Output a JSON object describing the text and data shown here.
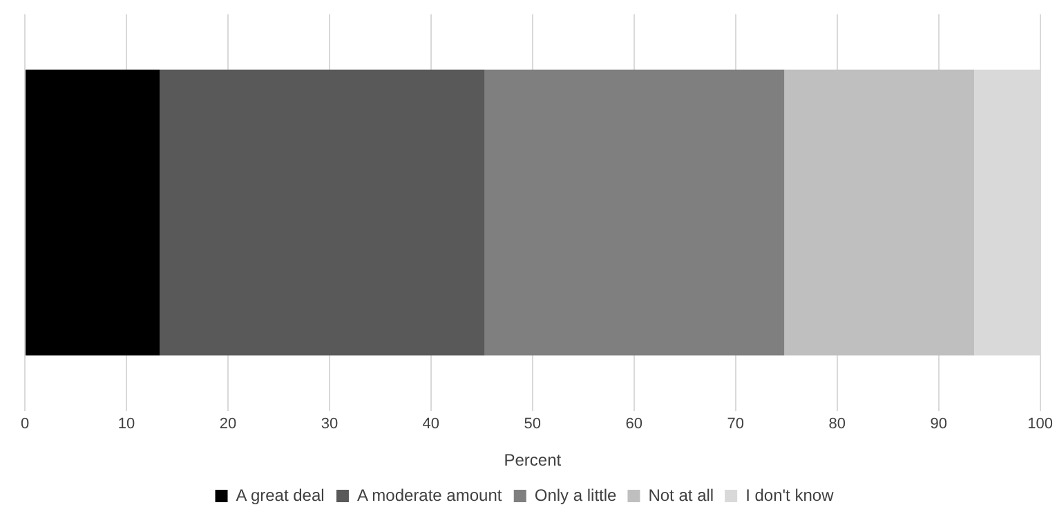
{
  "chart_data": {
    "type": "bar",
    "orientation": "horizontal",
    "stacked": true,
    "categories": [
      null
    ],
    "series": [
      {
        "name": "A great deal",
        "color": "#000000",
        "values": [
          13.3
        ]
      },
      {
        "name": "A moderate amount",
        "color": "#595959",
        "values": [
          32.0
        ]
      },
      {
        "name": "Only a little",
        "color": "#7f7f7f",
        "values": [
          29.5
        ]
      },
      {
        "name": "Not at all",
        "color": "#bfbfbf",
        "values": [
          18.7
        ]
      },
      {
        "name": "I don't know",
        "color": "#d9d9d9",
        "values": [
          6.5
        ]
      }
    ],
    "xlabel": "Percent",
    "xlim": [
      0,
      100
    ],
    "xticks": [
      0,
      10,
      20,
      30,
      40,
      50,
      60,
      70,
      80,
      90,
      100
    ],
    "grid": "x",
    "legend": "bottom"
  }
}
